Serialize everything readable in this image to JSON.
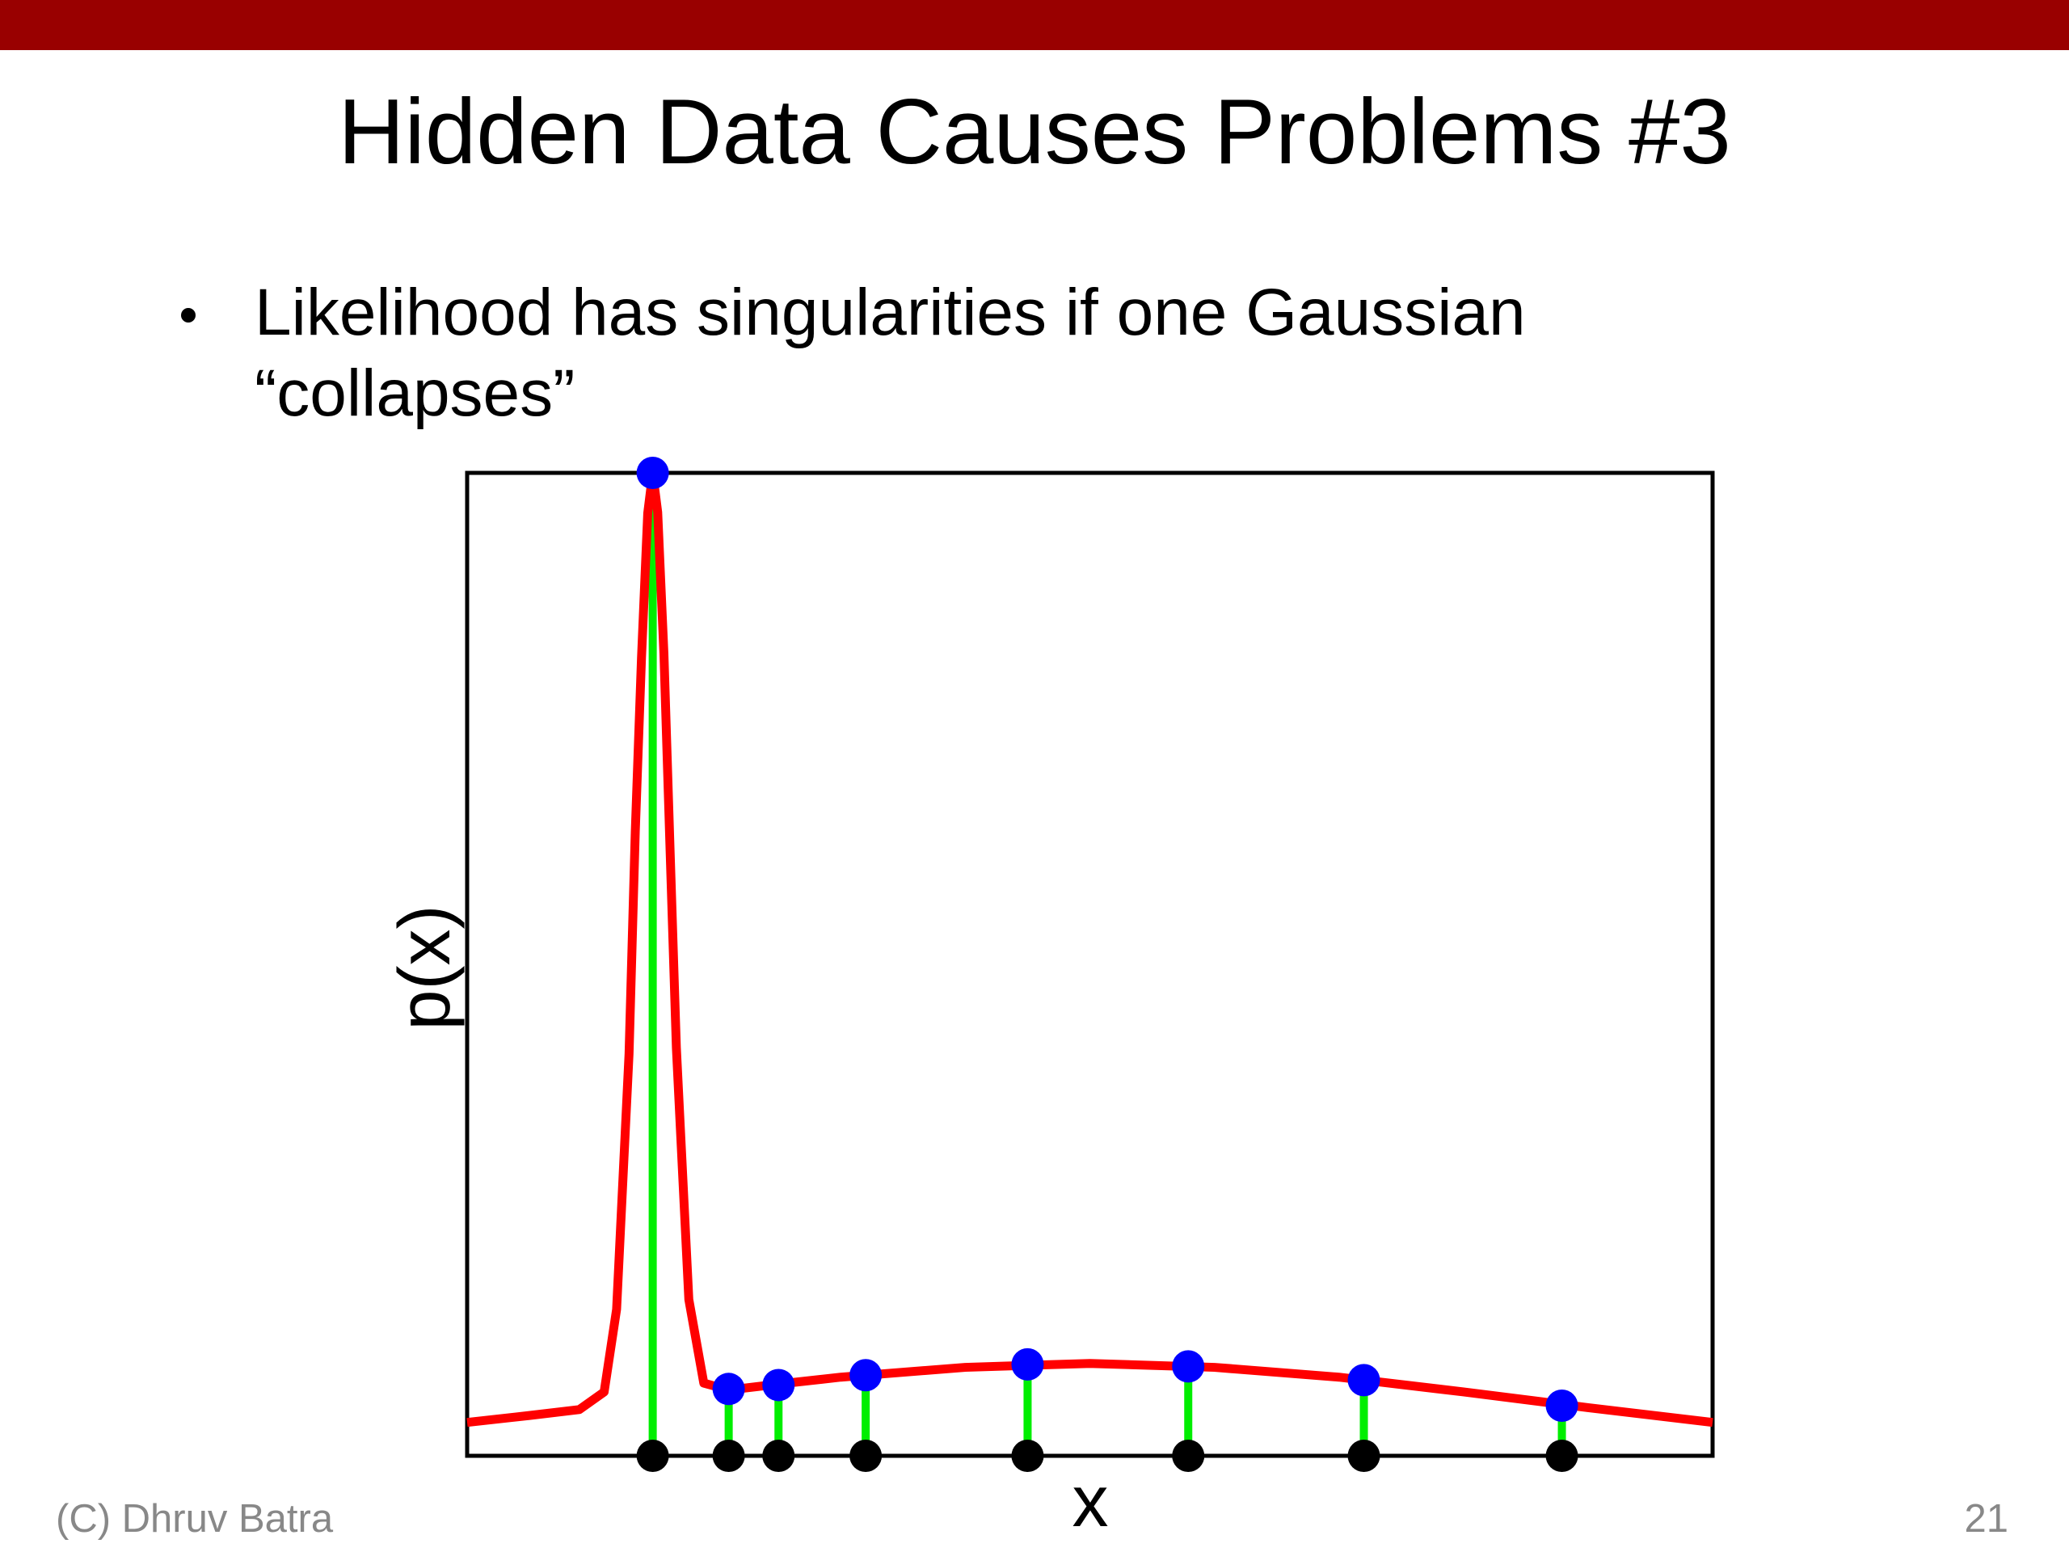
{
  "slide": {
    "title": "Hidden Data Causes Problems #3",
    "bullet": [
      "Likelihood has singularities if one Gaussian",
      "“collapses”"
    ],
    "footer": "(C) Dhruv Batra",
    "page_number": "21",
    "bar_color": "#990000"
  },
  "chart_data": {
    "type": "line",
    "x_label": "x",
    "y_label": "p(x)",
    "xlim": [
      0,
      1
    ],
    "ylim": [
      0,
      1
    ],
    "series": [
      {
        "color": "#ff0000",
        "x": [
          0,
          0.05,
          0.09,
          0.11,
          0.12,
          0.13,
          0.135,
          0.14,
          0.145,
          0.149,
          0.153,
          0.158,
          0.163,
          0.168,
          0.178,
          0.19,
          0.21,
          0.25,
          0.3,
          0.4,
          0.5,
          0.6,
          0.7,
          0.8,
          0.9,
          1.0
        ],
        "values": [
          0.034,
          0.041,
          0.047,
          0.065,
          0.149,
          0.409,
          0.635,
          0.812,
          0.959,
          1.0,
          0.96,
          0.816,
          0.614,
          0.415,
          0.159,
          0.074,
          0.067,
          0.073,
          0.08,
          0.09,
          0.094,
          0.09,
          0.08,
          0.065,
          0.049,
          0.034
        ]
      },
      {
        "color": "#0000ff",
        "stem_color": "#00ee00",
        "base_color": "#000000",
        "x": [
          0.149,
          0.21,
          0.25,
          0.32,
          0.45,
          0.579,
          0.72,
          0.879
        ],
        "values": [
          1.0,
          0.068,
          0.072,
          0.082,
          0.093,
          0.091,
          0.077,
          0.051
        ]
      }
    ]
  }
}
